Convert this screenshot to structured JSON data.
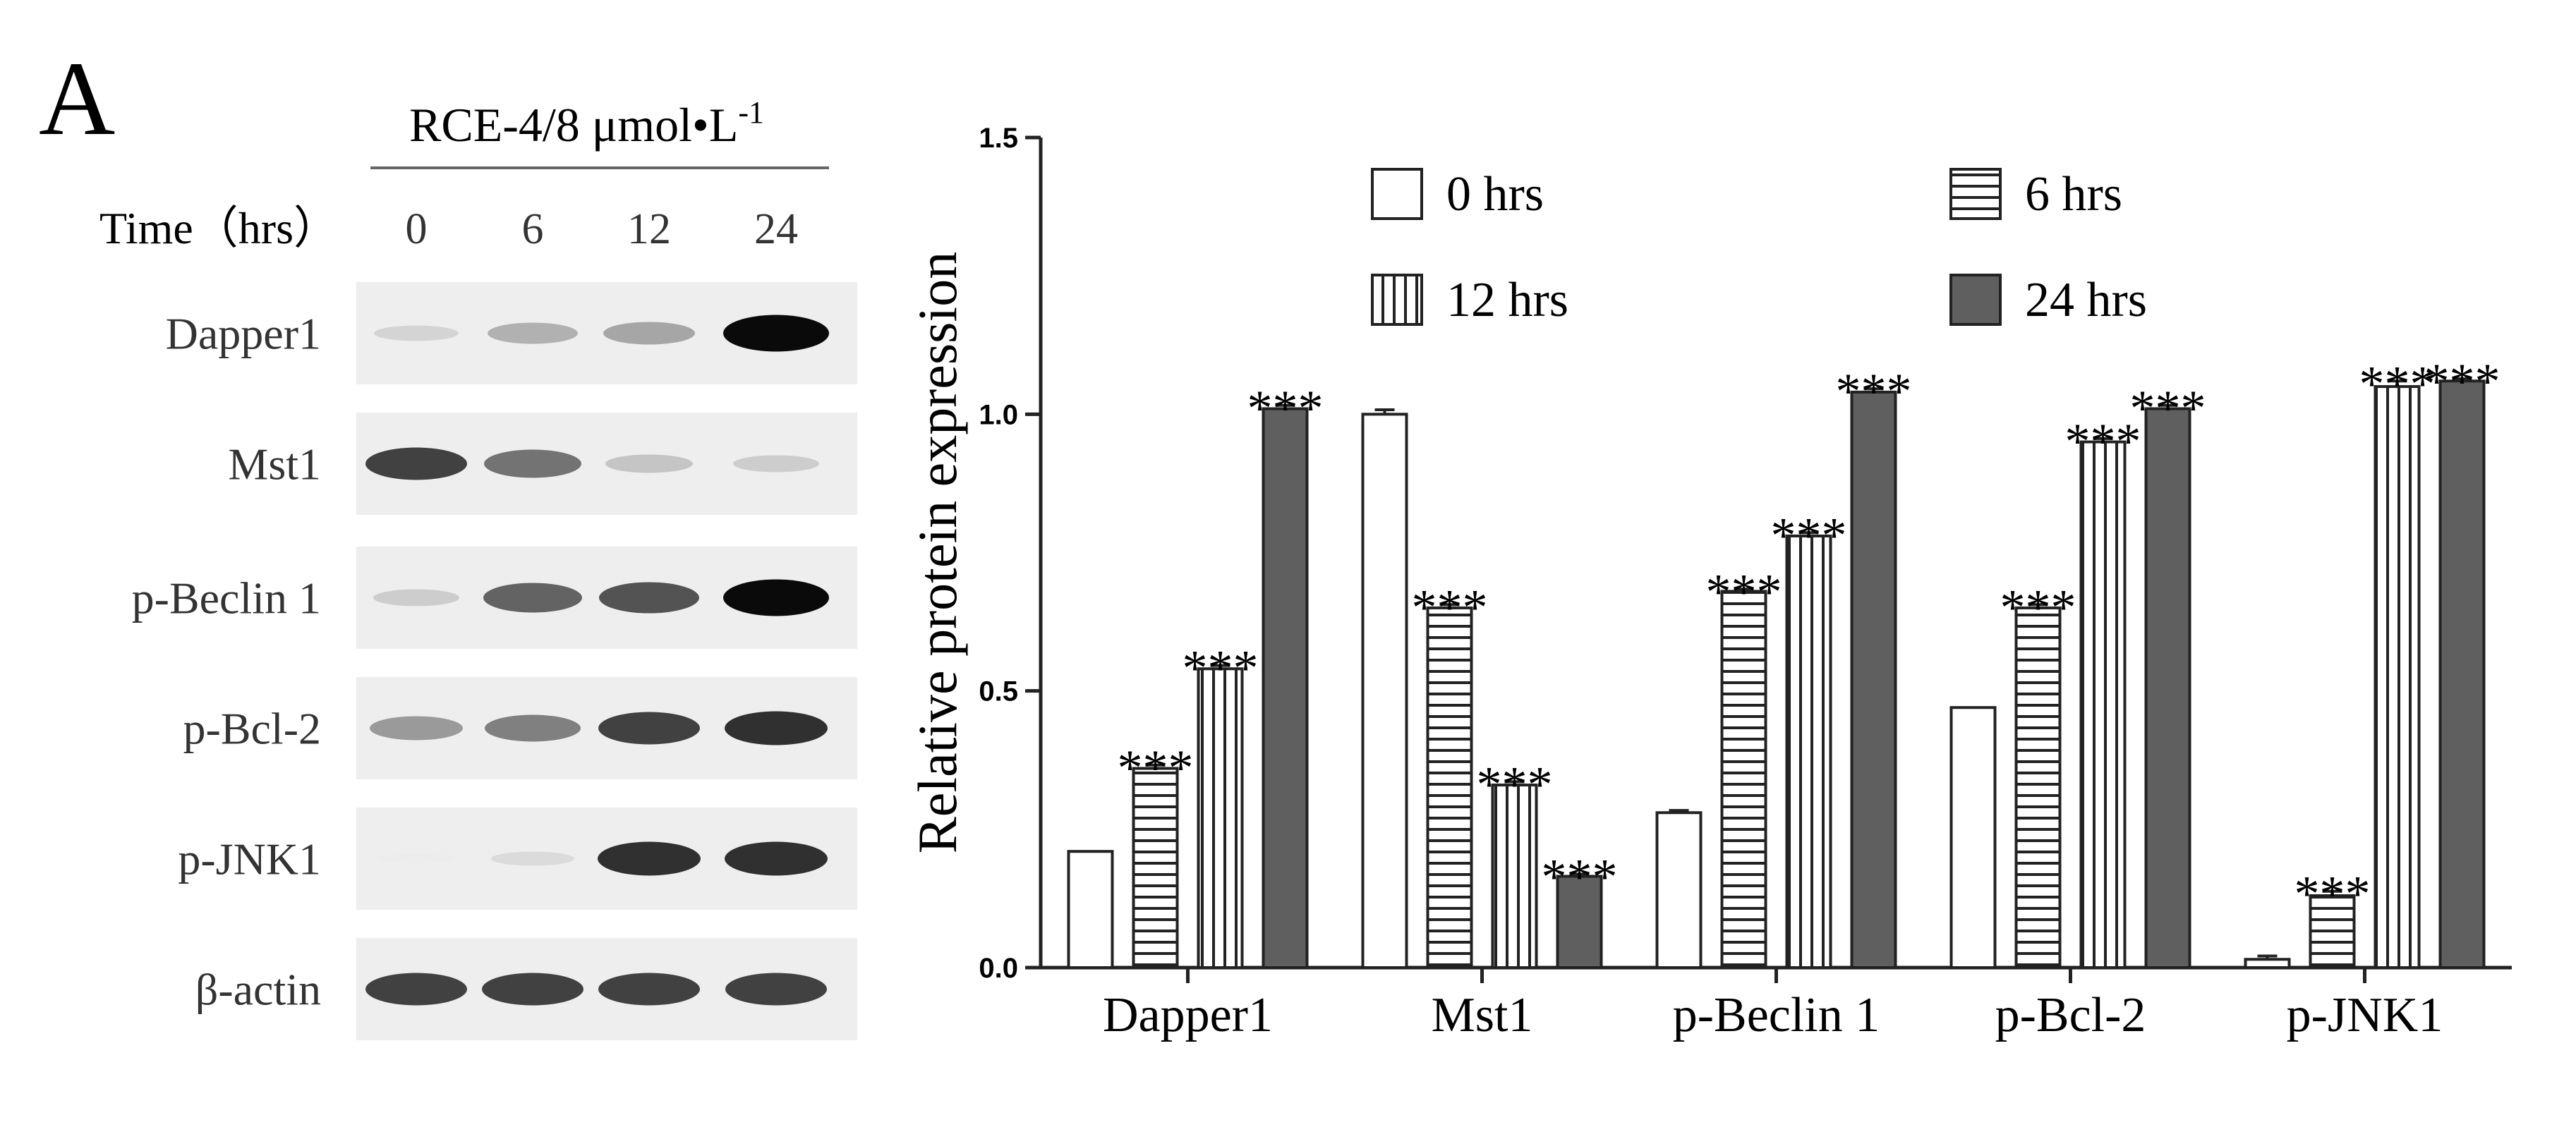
{
  "panel_label": "A",
  "blot": {
    "treatment_label": "RCE-4/8  μmol•L",
    "treatment_superscript": "-1",
    "time_label": "Time（hrs）",
    "timepoints": [
      "0",
      "6",
      "12",
      "24"
    ],
    "rows": [
      {
        "label": "Dapper1",
        "intensities": [
          0.25,
          0.45,
          0.5,
          1.0
        ]
      },
      {
        "label": "Mst1",
        "intensities": [
          0.85,
          0.7,
          0.35,
          0.3
        ]
      },
      {
        "label": "p-Beclin 1",
        "intensities": [
          0.3,
          0.75,
          0.8,
          1.0
        ]
      },
      {
        "label": "p-Bcl-2",
        "intensities": [
          0.55,
          0.65,
          0.85,
          0.9
        ]
      },
      {
        "label": "p-JNK1",
        "intensities": [
          0.02,
          0.2,
          0.9,
          0.9
        ]
      },
      {
        "label": "β-actin",
        "intensities": [
          0.85,
          0.85,
          0.85,
          0.85
        ]
      }
    ]
  },
  "chart_data": {
    "type": "bar",
    "title": "",
    "xlabel": "",
    "ylabel": "Relative protein expression",
    "ylim": [
      0,
      1.5
    ],
    "yticks": [
      "0.0",
      "0.5",
      "1.0",
      "1.5"
    ],
    "categories": [
      "Dapper1",
      "Mst1",
      "p-Beclin 1",
      "p-Bcl-2",
      "p-JNK1"
    ],
    "series": [
      {
        "name": "0 hrs",
        "pattern": "white",
        "values": [
          0.21,
          1.0,
          0.28,
          0.47,
          0.015
        ],
        "errors": [
          0,
          0.008,
          0.004,
          0,
          0.006
        ],
        "significance": [
          "",
          "",
          "",
          "",
          ""
        ]
      },
      {
        "name": "6 hrs",
        "pattern": "horizontal",
        "values": [
          0.36,
          0.65,
          0.68,
          0.65,
          0.13
        ],
        "errors": [
          0.006,
          0.006,
          0.004,
          0.006,
          0.008
        ],
        "significance": [
          "***",
          "***",
          "***",
          "***",
          "***"
        ]
      },
      {
        "name": "12 hrs",
        "pattern": "vertical",
        "values": [
          0.54,
          0.33,
          0.78,
          0.95,
          1.05
        ],
        "errors": [
          0.006,
          0.006,
          0.006,
          0.006,
          0.01
        ],
        "significance": [
          "***",
          "***",
          "***",
          "***",
          "***"
        ]
      },
      {
        "name": "24 hrs",
        "pattern": "gray",
        "values": [
          1.01,
          0.165,
          1.04,
          1.01,
          1.06
        ],
        "errors": [
          0.006,
          0.004,
          0.006,
          0.006,
          0.004
        ],
        "significance": [
          "***",
          "***",
          "***",
          "***",
          "***"
        ]
      }
    ],
    "legend": "top"
  }
}
